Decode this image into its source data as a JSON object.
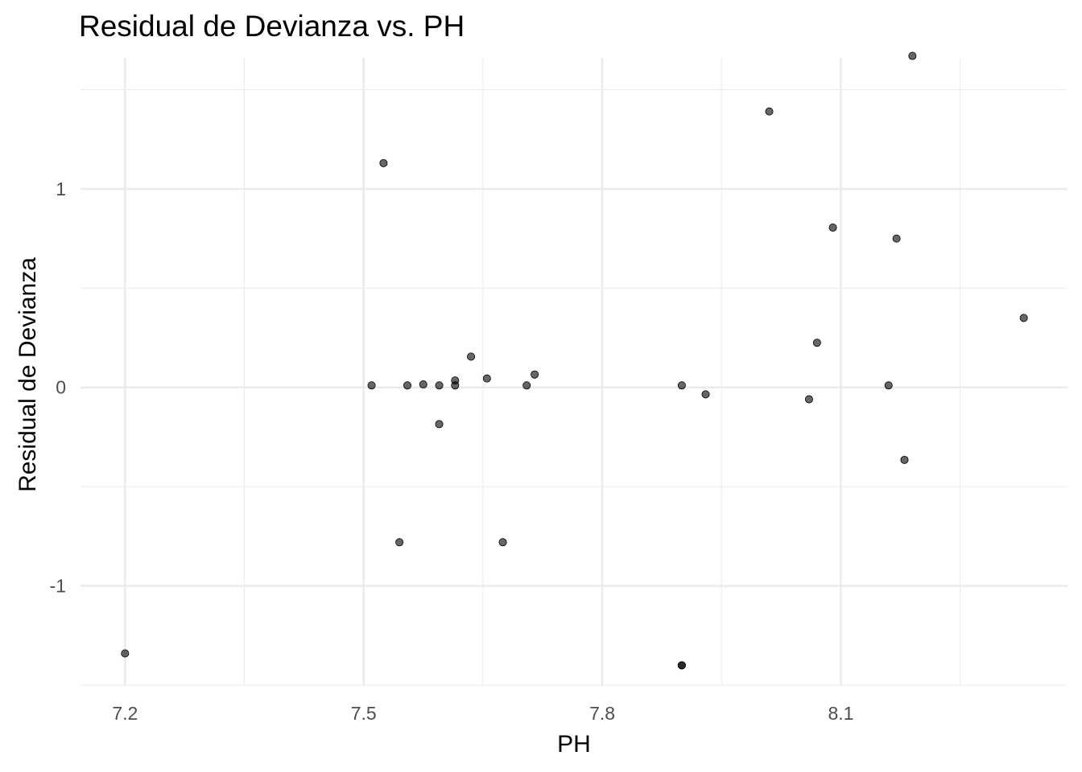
{
  "chart_data": {
    "type": "scatter",
    "title": "Residual de Devianza vs. PH",
    "xlabel": "PH",
    "ylabel": "Residual de Devianza",
    "xlim": [
      7.144,
      8.385
    ],
    "ylim": [
      -1.5,
      1.66
    ],
    "x_ticks": [
      7.2,
      7.5,
      7.8,
      8.1
    ],
    "x_tick_labels": [
      "7.2",
      "7.5",
      "7.8",
      "8.1"
    ],
    "x_minor_ticks": [
      7.35,
      7.65,
      7.95,
      8.25
    ],
    "y_ticks": [
      -1,
      0,
      1
    ],
    "y_tick_labels": [
      "-1",
      "0",
      "1"
    ],
    "y_minor_ticks": [
      -1.5,
      -0.5,
      0.5,
      1.5
    ],
    "grid": true,
    "point_color": "#000000",
    "point_opacity": 0.6,
    "grid_color": "#ebebeb",
    "points": [
      {
        "x": 7.2,
        "y": -1.34
      },
      {
        "x": 7.51,
        "y": 0.01
      },
      {
        "x": 7.525,
        "y": 1.13
      },
      {
        "x": 7.545,
        "y": -0.78
      },
      {
        "x": 7.555,
        "y": 0.01
      },
      {
        "x": 7.575,
        "y": 0.015
      },
      {
        "x": 7.595,
        "y": 0.01
      },
      {
        "x": 7.595,
        "y": -0.185
      },
      {
        "x": 7.615,
        "y": 0.01
      },
      {
        "x": 7.615,
        "y": 0.035
      },
      {
        "x": 7.635,
        "y": 0.155
      },
      {
        "x": 7.655,
        "y": 0.045
      },
      {
        "x": 7.675,
        "y": -0.78
      },
      {
        "x": 7.705,
        "y": 0.01
      },
      {
        "x": 7.715,
        "y": 0.065
      },
      {
        "x": 7.9,
        "y": 0.01
      },
      {
        "x": 7.9,
        "y": -1.4
      },
      {
        "x": 7.9,
        "y": -1.4
      },
      {
        "x": 7.93,
        "y": -0.035
      },
      {
        "x": 8.01,
        "y": 1.39
      },
      {
        "x": 8.06,
        "y": -0.06
      },
      {
        "x": 8.07,
        "y": 0.225
      },
      {
        "x": 8.09,
        "y": 0.805
      },
      {
        "x": 8.16,
        "y": 0.01
      },
      {
        "x": 8.17,
        "y": 0.75
      },
      {
        "x": 8.18,
        "y": -0.365
      },
      {
        "x": 8.19,
        "y": 1.67
      },
      {
        "x": 8.33,
        "y": 0.35
      }
    ]
  }
}
